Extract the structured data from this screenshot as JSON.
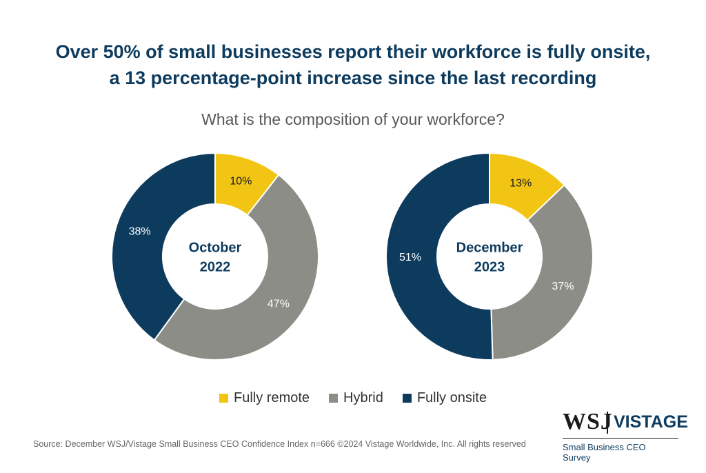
{
  "title_line1": "Over 50% of small businesses report their workforce is fully onsite,",
  "title_line2": "a 13 percentage-point increase since the last recording",
  "subtitle": "What is the composition of your workforce?",
  "colors": {
    "fully_remote": "#f2c515",
    "hybrid": "#8c8d86",
    "fully_onsite": "#0d3b5e",
    "title": "#0d3b5e"
  },
  "chart_data": [
    {
      "type": "pie",
      "center_label_line1": "October",
      "center_label_line2": "2022",
      "categories": [
        "Fully remote",
        "Hybrid",
        "Fully onsite"
      ],
      "values": [
        10,
        47,
        38
      ],
      "labels": [
        "10%",
        "47%",
        "38%"
      ]
    },
    {
      "type": "pie",
      "center_label_line1": "December",
      "center_label_line2": "2023",
      "categories": [
        "Fully remote",
        "Hybrid",
        "Fully onsite"
      ],
      "values": [
        13,
        37,
        51
      ],
      "labels": [
        "13%",
        "37%",
        "51%"
      ]
    }
  ],
  "legend": [
    {
      "label": "Fully remote",
      "color": "#f2c515"
    },
    {
      "label": "Hybrid",
      "color": "#8c8d86"
    },
    {
      "label": "Fully onsite",
      "color": "#0d3b5e"
    }
  ],
  "source": "Source: December WSJ/Vistage Small Business CEO Confidence Index n=666 ©2024 Vistage Worldwide, Inc. All rights reserved",
  "logo": {
    "wsj": "WSJ",
    "vistage": "VISTAGE",
    "tagline": "Small Business CEO Survey"
  }
}
